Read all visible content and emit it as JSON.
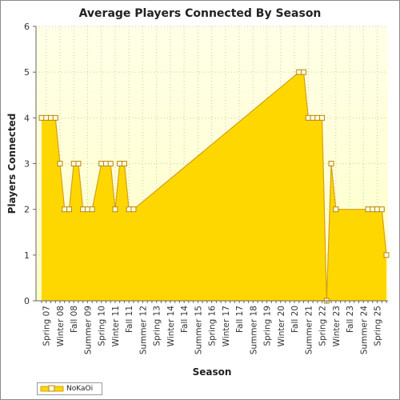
{
  "chart_data": {
    "type": "area",
    "title": "Average Players Connected By Season",
    "xlabel": "Season",
    "ylabel": "Players Connected",
    "ylim": [
      0,
      6
    ],
    "yticks": [
      0,
      1,
      2,
      3,
      4,
      5,
      6
    ],
    "grid": true,
    "legend": "bottom-left",
    "categories": [
      "Spring 07",
      "Winter 08",
      "Fall 08",
      "Summer 09",
      "Spring 10",
      "Winter 11",
      "Fall 11",
      "Summer 12",
      "Spring 13",
      "Winter 14",
      "Fall 14",
      "Summer 15",
      "Spring 16",
      "Winter 17",
      "Fall 17",
      "Summer 18",
      "Spring 19",
      "Winter 20",
      "Fall 20",
      "Summer 21",
      "Spring 22",
      "Winter 23",
      "Fall 23",
      "Summer 24",
      "Spring 25"
    ],
    "series": [
      {
        "name": "NoKaOi",
        "color": "#ffd700",
        "points": [
          {
            "x": 0,
            "y": 4
          },
          {
            "x": 1,
            "y": 4
          },
          {
            "x": 2,
            "y": 4
          },
          {
            "x": 3,
            "y": 4
          },
          {
            "x": 4,
            "y": 3
          },
          {
            "x": 5,
            "y": 2
          },
          {
            "x": 6,
            "y": 2
          },
          {
            "x": 7,
            "y": 3
          },
          {
            "x": 8,
            "y": 3
          },
          {
            "x": 9,
            "y": 2
          },
          {
            "x": 10,
            "y": 2
          },
          {
            "x": 11,
            "y": 2
          },
          {
            "x": 13,
            "y": 3
          },
          {
            "x": 14,
            "y": 3
          },
          {
            "x": 15,
            "y": 3
          },
          {
            "x": 16,
            "y": 2
          },
          {
            "x": 17,
            "y": 3
          },
          {
            "x": 18,
            "y": 3
          },
          {
            "x": 19,
            "y": 2
          },
          {
            "x": 20,
            "y": 2
          },
          {
            "x": 56,
            "y": 5
          },
          {
            "x": 57,
            "y": 5
          },
          {
            "x": 58,
            "y": 4
          },
          {
            "x": 59,
            "y": 4
          },
          {
            "x": 60,
            "y": 4
          },
          {
            "x": 61,
            "y": 4
          },
          {
            "x": 62,
            "y": 0
          },
          {
            "x": 63,
            "y": 3
          },
          {
            "x": 64,
            "y": 2
          },
          {
            "x": 71,
            "y": 2
          },
          {
            "x": 72,
            "y": 2
          },
          {
            "x": 73,
            "y": 2
          },
          {
            "x": 74,
            "y": 2
          },
          {
            "x": 75,
            "y": 1
          }
        ]
      }
    ]
  }
}
